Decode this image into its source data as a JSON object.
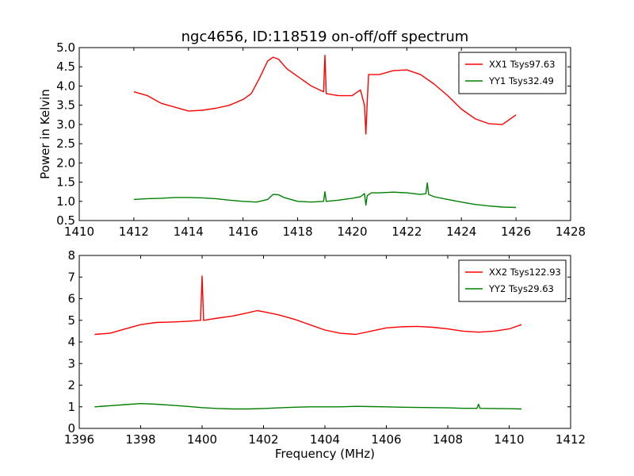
{
  "title": "ngc4656, ID:118519 on-off/off spectrum",
  "chart_data": [
    {
      "type": "line",
      "ylabel": "Power in Kelvin",
      "xlabel": "",
      "xlim": [
        1410,
        1428
      ],
      "ylim": [
        0.5,
        5.0
      ],
      "x_ticks": [
        1410,
        1412,
        1414,
        1416,
        1418,
        1420,
        1422,
        1424,
        1426,
        1428
      ],
      "y_ticks": [
        "0.5",
        "1.0",
        "1.5",
        "2.0",
        "2.5",
        "3.0",
        "3.5",
        "4.0",
        "4.5",
        "5.0"
      ],
      "legend": "top-right",
      "series": [
        {
          "name": "XX1 Tsys97.63",
          "color": "#ff0000",
          "x": [
            1412.0,
            1412.5,
            1413.0,
            1413.5,
            1414.0,
            1414.5,
            1415.0,
            1415.5,
            1416.0,
            1416.3,
            1416.6,
            1416.9,
            1417.1,
            1417.3,
            1417.6,
            1418.0,
            1418.5,
            1418.95,
            1419.0,
            1419.05,
            1419.5,
            1420.0,
            1420.3,
            1420.45,
            1420.5,
            1420.55,
            1420.6,
            1421.0,
            1421.5,
            1422.0,
            1422.5,
            1423.0,
            1423.5,
            1424.0,
            1424.5,
            1425.0,
            1425.5,
            1426.0
          ],
          "y": [
            3.85,
            3.75,
            3.55,
            3.45,
            3.35,
            3.37,
            3.42,
            3.5,
            3.65,
            3.8,
            4.2,
            4.65,
            4.75,
            4.7,
            4.45,
            4.25,
            4.0,
            3.85,
            4.8,
            3.8,
            3.75,
            3.75,
            3.9,
            3.5,
            2.75,
            3.6,
            4.3,
            4.3,
            4.4,
            4.42,
            4.3,
            4.05,
            3.75,
            3.4,
            3.15,
            3.02,
            3.0,
            3.25
          ]
        },
        {
          "name": "YY1 Tsys32.49",
          "color": "#008000",
          "x": [
            1412.0,
            1412.5,
            1413.0,
            1413.5,
            1414.0,
            1414.5,
            1415.0,
            1415.5,
            1416.0,
            1416.5,
            1416.9,
            1417.1,
            1417.3,
            1417.5,
            1418.0,
            1418.5,
            1418.95,
            1419.0,
            1419.05,
            1419.5,
            1420.0,
            1420.3,
            1420.45,
            1420.5,
            1420.55,
            1420.7,
            1421.0,
            1421.5,
            1422.0,
            1422.5,
            1422.7,
            1422.75,
            1422.8,
            1423.0,
            1423.5,
            1424.0,
            1424.5,
            1425.0,
            1425.5,
            1426.0
          ],
          "y": [
            1.05,
            1.07,
            1.08,
            1.1,
            1.1,
            1.09,
            1.07,
            1.03,
            1.0,
            0.98,
            1.05,
            1.18,
            1.17,
            1.1,
            1.0,
            0.98,
            1.0,
            1.25,
            1.0,
            1.03,
            1.08,
            1.12,
            1.2,
            0.9,
            1.15,
            1.22,
            1.22,
            1.24,
            1.22,
            1.18,
            1.2,
            1.48,
            1.18,
            1.12,
            1.05,
            0.98,
            0.92,
            0.88,
            0.85,
            0.84
          ]
        }
      ]
    },
    {
      "type": "line",
      "ylabel": "",
      "xlabel": "Frequency (MHz)",
      "xlim": [
        1396,
        1412
      ],
      "ylim": [
        0,
        8
      ],
      "x_ticks": [
        1396,
        1398,
        1400,
        1402,
        1404,
        1406,
        1408,
        1410,
        1412
      ],
      "y_ticks": [
        "0",
        "1",
        "2",
        "3",
        "4",
        "5",
        "6",
        "7",
        "8"
      ],
      "legend": "top-right",
      "series": [
        {
          "name": "XX2 Tsys122.93",
          "color": "#ff0000",
          "x": [
            1396.5,
            1397.0,
            1397.5,
            1398.0,
            1398.5,
            1399.0,
            1399.5,
            1399.95,
            1400.0,
            1400.05,
            1400.5,
            1401.0,
            1401.5,
            1401.8,
            1402.0,
            1402.5,
            1403.0,
            1403.5,
            1404.0,
            1404.5,
            1405.0,
            1405.5,
            1406.0,
            1406.5,
            1407.0,
            1407.5,
            1408.0,
            1408.5,
            1409.0,
            1409.5,
            1410.0,
            1410.4
          ],
          "y": [
            4.35,
            4.4,
            4.6,
            4.8,
            4.9,
            4.92,
            4.95,
            5.0,
            7.05,
            5.0,
            5.1,
            5.2,
            5.35,
            5.45,
            5.4,
            5.25,
            5.05,
            4.8,
            4.55,
            4.4,
            4.35,
            4.5,
            4.65,
            4.7,
            4.72,
            4.68,
            4.6,
            4.5,
            4.45,
            4.5,
            4.6,
            4.8
          ]
        },
        {
          "name": "YY2 Tsys29.63",
          "color": "#008000",
          "x": [
            1396.5,
            1397.0,
            1397.5,
            1398.0,
            1398.5,
            1399.0,
            1399.5,
            1400.0,
            1400.5,
            1401.0,
            1401.5,
            1402.0,
            1402.5,
            1403.0,
            1403.5,
            1404.0,
            1404.5,
            1405.0,
            1405.5,
            1406.0,
            1406.5,
            1407.0,
            1407.5,
            1408.0,
            1408.5,
            1408.95,
            1409.0,
            1409.05,
            1409.5,
            1410.0,
            1410.4
          ],
          "y": [
            1.0,
            1.05,
            1.1,
            1.15,
            1.12,
            1.07,
            1.02,
            0.96,
            0.92,
            0.9,
            0.9,
            0.92,
            0.95,
            0.98,
            1.0,
            1.0,
            1.0,
            1.02,
            1.01,
            1.0,
            0.98,
            0.97,
            0.96,
            0.95,
            0.93,
            0.93,
            1.12,
            0.93,
            0.92,
            0.91,
            0.9
          ]
        }
      ]
    }
  ]
}
